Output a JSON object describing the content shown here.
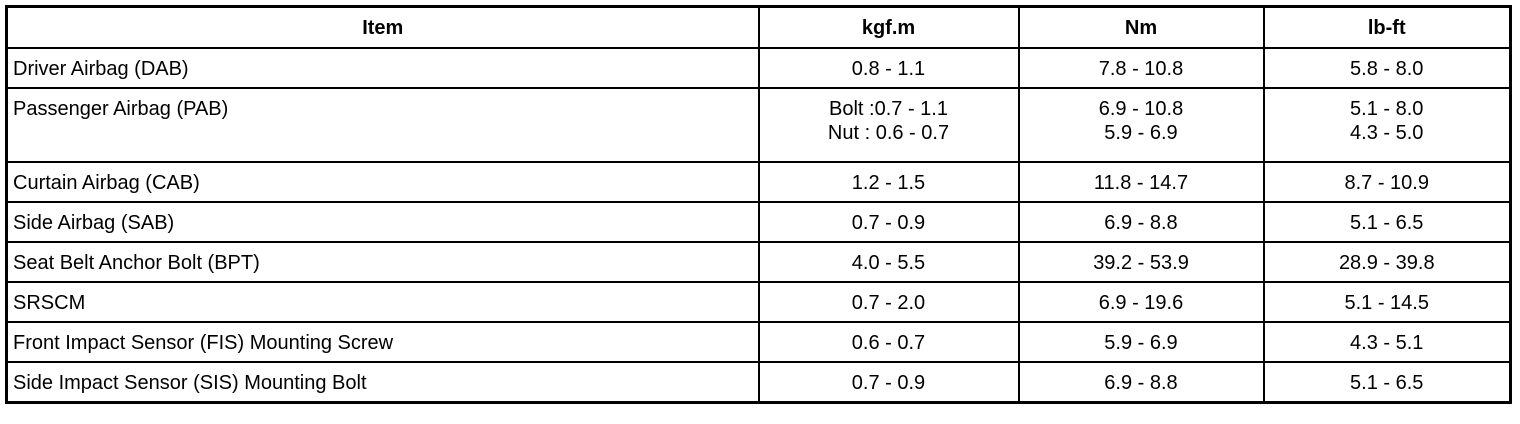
{
  "table": {
    "headers": [
      "Item",
      "kgf.m",
      "Nm",
      "lb-ft"
    ],
    "rows": [
      {
        "item": "Driver Airbag (DAB)",
        "kgf": [
          "0.8 - 1.1"
        ],
        "nm": [
          "7.8 - 10.8"
        ],
        "lbft": [
          "5.8 - 8.0"
        ]
      },
      {
        "item": "Passenger Airbag (PAB)",
        "kgf": [
          "Bolt :0.7 - 1.1",
          "Nut : 0.6 - 0.7"
        ],
        "nm": [
          "6.9 - 10.8",
          "5.9 - 6.9"
        ],
        "lbft": [
          "5.1 - 8.0",
          "4.3 - 5.0"
        ]
      },
      {
        "item": "Curtain Airbag (CAB)",
        "kgf": [
          "1.2 - 1.5"
        ],
        "nm": [
          "11.8 - 14.7"
        ],
        "lbft": [
          "8.7 - 10.9"
        ]
      },
      {
        "item": "Side Airbag (SAB)",
        "kgf": [
          "0.7 - 0.9"
        ],
        "nm": [
          "6.9 - 8.8"
        ],
        "lbft": [
          "5.1 - 6.5"
        ]
      },
      {
        "item": "Seat Belt Anchor Bolt (BPT)",
        "kgf": [
          "4.0 - 5.5"
        ],
        "nm": [
          "39.2 - 53.9"
        ],
        "lbft": [
          "28.9 - 39.8"
        ]
      },
      {
        "item": "SRSCM",
        "kgf": [
          "0.7 - 2.0"
        ],
        "nm": [
          "6.9 - 19.6"
        ],
        "lbft": [
          "5.1 - 14.5"
        ]
      },
      {
        "item": "Front Impact Sensor (FIS) Mounting Screw",
        "kgf": [
          "0.6 - 0.7"
        ],
        "nm": [
          "5.9 - 6.9"
        ],
        "lbft": [
          "4.3 - 5.1"
        ]
      },
      {
        "item": "Side Impact Sensor (SIS) Mounting Bolt",
        "kgf": [
          "0.7 - 0.9"
        ],
        "nm": [
          "6.9 - 8.8"
        ],
        "lbft": [
          "5.1 - 6.5"
        ]
      }
    ]
  }
}
